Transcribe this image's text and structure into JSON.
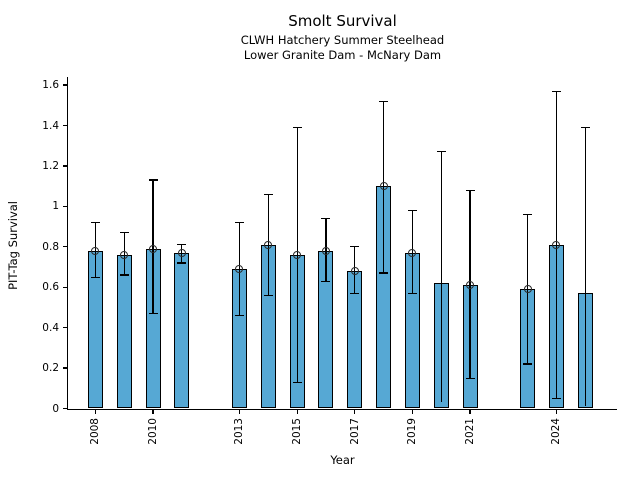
{
  "header": {
    "title": "Smolt Survival",
    "subtitle_line1": "CLWH Hatchery Summer Steelhead",
    "subtitle_line2": "Lower Granite Dam - McNary Dam"
  },
  "chart_data": {
    "type": "bar",
    "title": "Smolt Survival",
    "subtitle_line1": "CLWH Hatchery Summer Steelhead",
    "subtitle_line2": "Lower Granite Dam - McNary Dam",
    "xlabel": "Year",
    "ylabel": "PIT-Tag Survival",
    "xlim": [
      2007.05,
      2026.1
    ],
    "ylim": [
      0,
      1.64
    ],
    "grid": false,
    "legend": "none",
    "bar_color": "#56a8d4",
    "bar_edge_color": "#000000",
    "error_color": "#000000",
    "yticks": [
      0,
      0.2,
      0.4,
      0.6,
      0.8,
      1.0,
      1.2,
      1.4,
      1.6
    ],
    "ytick_labels": [
      "0",
      "0.2",
      "0.4",
      "0.6",
      "0.8",
      "1",
      "1.2",
      "1.4",
      "1.6"
    ],
    "xticks": [
      2008,
      2010,
      2013,
      2015,
      2017,
      2019,
      2021,
      2024
    ],
    "xtick_labels": [
      "2008",
      "2010",
      "2013",
      "2015",
      "2017",
      "2019",
      "2021",
      "2024"
    ],
    "points": [
      {
        "year": 2008,
        "value": 0.78,
        "ci_low": 0.65,
        "ci_high": 0.92,
        "marker": true,
        "cap_low": true
      },
      {
        "year": 2009,
        "value": 0.76,
        "ci_low": 0.66,
        "ci_high": 0.87,
        "marker": true,
        "cap_low": true
      },
      {
        "year": 2010,
        "value": 0.79,
        "ci_low": 0.47,
        "ci_high": 1.13,
        "marker": true,
        "cap_low": true
      },
      {
        "year": 2011,
        "value": 0.77,
        "ci_low": 0.72,
        "ci_high": 0.81,
        "marker": true,
        "cap_low": true
      },
      {
        "year": 2013,
        "value": 0.69,
        "ci_low": 0.46,
        "ci_high": 0.92,
        "marker": true,
        "cap_low": true
      },
      {
        "year": 2014,
        "value": 0.81,
        "ci_low": 0.56,
        "ci_high": 1.06,
        "marker": true,
        "cap_low": true
      },
      {
        "year": 2015,
        "value": 0.76,
        "ci_low": 0.13,
        "ci_high": 1.39,
        "marker": true,
        "cap_low": true
      },
      {
        "year": 2016,
        "value": 0.78,
        "ci_low": 0.63,
        "ci_high": 0.94,
        "marker": true,
        "cap_low": true
      },
      {
        "year": 2017,
        "value": 0.68,
        "ci_low": 0.57,
        "ci_high": 0.8,
        "marker": true,
        "cap_low": true
      },
      {
        "year": 2018,
        "value": 1.1,
        "ci_low": 0.67,
        "ci_high": 1.52,
        "marker": true,
        "cap_low": true
      },
      {
        "year": 2019,
        "value": 0.77,
        "ci_low": 0.57,
        "ci_high": 0.98,
        "marker": true,
        "cap_low": true
      },
      {
        "year": 2020,
        "value": 0.62,
        "ci_low": 0.03,
        "ci_high": 1.27,
        "marker": false,
        "cap_low": false
      },
      {
        "year": 2021,
        "value": 0.61,
        "ci_low": 0.15,
        "ci_high": 1.08,
        "marker": true,
        "cap_low": true
      },
      {
        "year": 2023,
        "value": 0.59,
        "ci_low": 0.22,
        "ci_high": 0.96,
        "marker": true,
        "cap_low": true
      },
      {
        "year": 2024,
        "value": 0.81,
        "ci_low": 0.05,
        "ci_high": 1.57,
        "marker": true,
        "cap_low": true
      },
      {
        "year": 2025,
        "value": 0.57,
        "ci_low": 0.01,
        "ci_high": 1.39,
        "marker": false,
        "cap_low": false
      }
    ]
  }
}
